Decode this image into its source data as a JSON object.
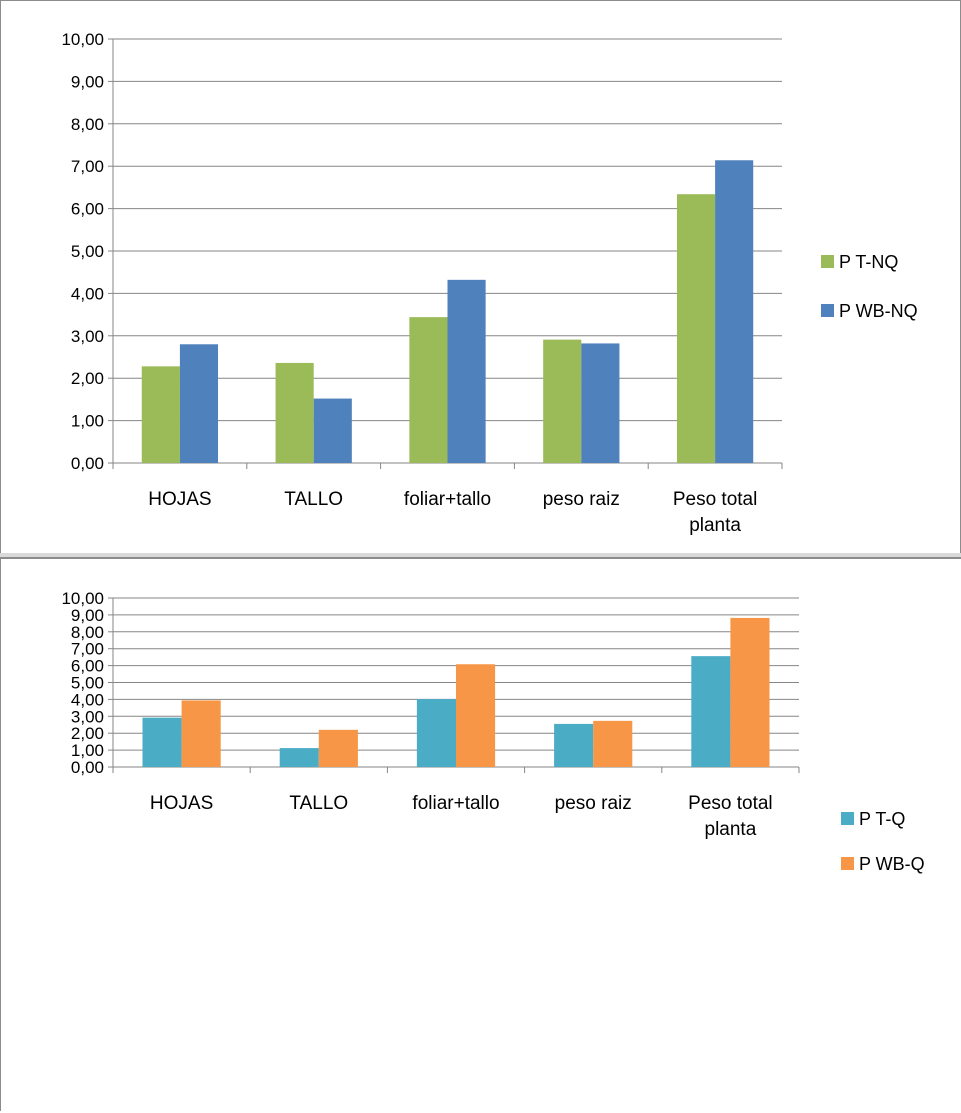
{
  "chart_data": [
    {
      "type": "bar",
      "title": "",
      "xlabel": "",
      "ylabel": "",
      "ylim": [
        0,
        10
      ],
      "y_tick_labels": [
        "0,00",
        "1,00",
        "2,00",
        "3,00",
        "4,00",
        "5,00",
        "6,00",
        "7,00",
        "8,00",
        "9,00",
        "10,00"
      ],
      "grid": true,
      "legend_position": "right",
      "categories": [
        [
          "HOJAS"
        ],
        [
          "TALLO"
        ],
        [
          "foliar+tallo"
        ],
        [
          "peso raiz"
        ],
        [
          "Peso total",
          "planta"
        ]
      ],
      "series": [
        {
          "name": "P T-NQ",
          "color": "#9bbb59",
          "values": [
            2.28,
            2.36,
            3.44,
            2.91,
            6.34
          ]
        },
        {
          "name": "P WB-NQ",
          "color": "#4f81bd",
          "values": [
            2.8,
            1.52,
            4.32,
            2.82,
            7.14
          ]
        }
      ]
    },
    {
      "type": "bar",
      "title": "",
      "xlabel": "",
      "ylabel": "",
      "ylim": [
        0,
        10
      ],
      "y_tick_labels": [
        "0,00",
        "1,00",
        "2,00",
        "3,00",
        "4,00",
        "5,00",
        "6,00",
        "7,00",
        "8,00",
        "9,00",
        "10,00"
      ],
      "grid": true,
      "legend_position": "right",
      "categories": [
        [
          "HOJAS"
        ],
        [
          "TALLO"
        ],
        [
          "foliar+tallo"
        ],
        [
          "peso raiz"
        ],
        [
          "Peso total",
          "planta"
        ]
      ],
      "series": [
        {
          "name": "P T-Q",
          "color": "#4bacc6",
          "values": [
            2.92,
            1.12,
            4.02,
            2.55,
            6.56
          ]
        },
        {
          "name": "P WB-Q",
          "color": "#f79646",
          "values": [
            3.94,
            2.2,
            6.08,
            2.73,
            8.82
          ]
        }
      ]
    }
  ]
}
